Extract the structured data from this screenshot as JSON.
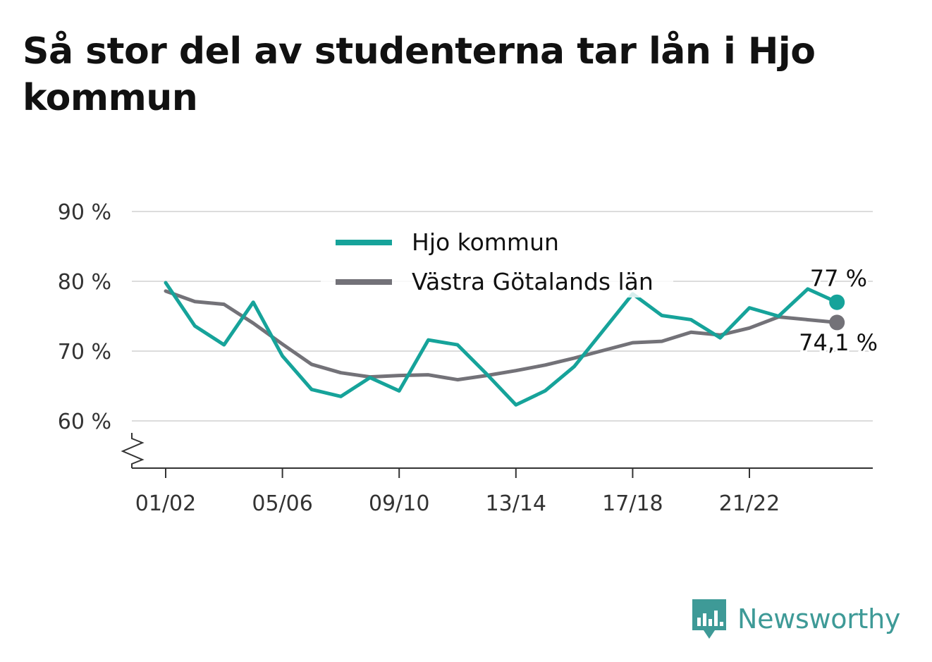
{
  "title": "Så stor del av studenterna tar lån i Hjo kommun",
  "brand": {
    "name": "Newsworthy",
    "color": "#3e9a97",
    "icon": "bar-chart-speech-bubble-icon"
  },
  "chart_data": {
    "type": "line",
    "title": "Så stor del av studenterna tar lån i Hjo kommun",
    "x": [
      "01/02",
      "02/03",
      "03/04",
      "04/05",
      "05/06",
      "06/07",
      "07/08",
      "08/09",
      "09/10",
      "10/11",
      "11/12",
      "12/13",
      "13/14",
      "14/15",
      "15/16",
      "16/17",
      "17/18",
      "18/19",
      "19/20",
      "20/21",
      "21/22",
      "22/23",
      "23/24",
      "24/25"
    ],
    "x_tick_labels": [
      "01/02",
      "05/06",
      "09/10",
      "13/14",
      "17/18",
      "21/22"
    ],
    "y_tick_labels": [
      "90 %",
      "80 %",
      "70 %",
      "60 %"
    ],
    "y_ticks": [
      90,
      80,
      70,
      60
    ],
    "ylim": [
      53.5,
      90
    ],
    "y_axis_break": true,
    "grid": true,
    "legend_position": "top-center",
    "series": [
      {
        "name": "Hjo kommun",
        "color": "#16a39a",
        "values": [
          79.8,
          73.6,
          70.9,
          77.0,
          69.3,
          64.5,
          63.5,
          66.2,
          64.3,
          71.6,
          70.9,
          66.7,
          62.3,
          64.3,
          67.8,
          73.0,
          78.2,
          75.1,
          74.5,
          71.9,
          76.2,
          75.0,
          78.9,
          77.0
        ],
        "end_label": "77 %"
      },
      {
        "name": "Västra Götalands län",
        "color": "#737278",
        "values": [
          78.6,
          77.1,
          76.7,
          74.0,
          71.0,
          68.1,
          66.9,
          66.3,
          66.5,
          66.6,
          65.9,
          66.5,
          67.2,
          68.0,
          69.0,
          70.1,
          71.2,
          71.4,
          72.7,
          72.3,
          73.3,
          74.9,
          74.5,
          74.1
        ],
        "end_label": "74,1 %"
      }
    ]
  }
}
